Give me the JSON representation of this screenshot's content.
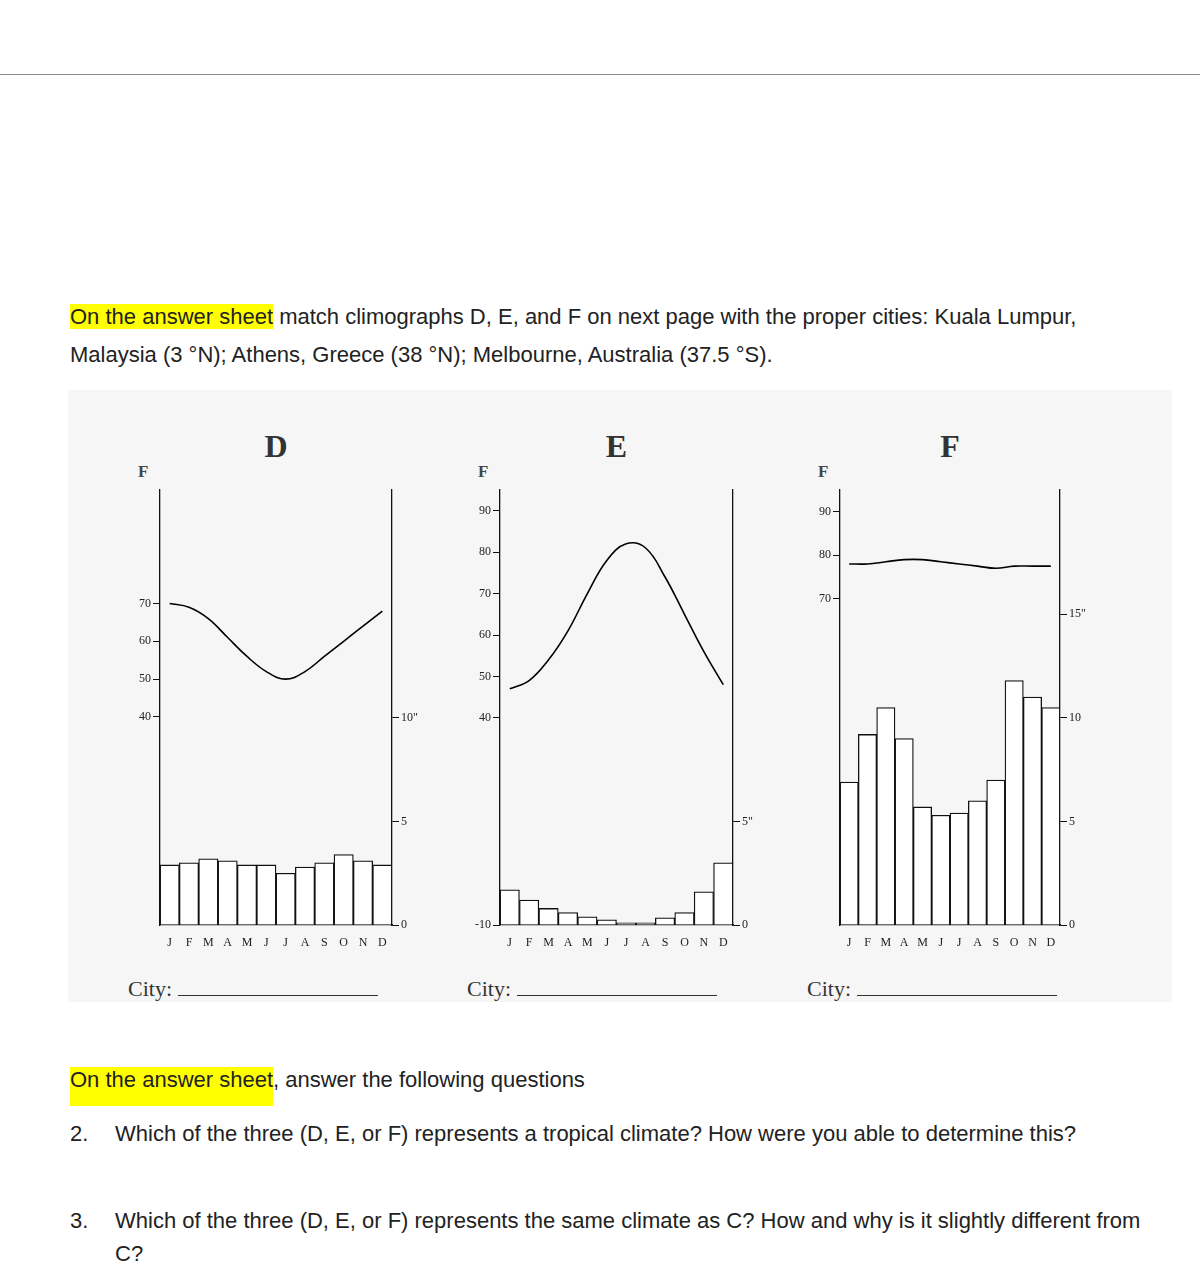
{
  "instruction": {
    "highlight": "On the answer sheet",
    "text": " match climographs D, E, and F on next page with the proper cities: Kuala Lumpur, Malaysia (3 °N); Athens, Greece (38 °N); Melbourne, Australia (37.5 °S)."
  },
  "chart_data": [
    {
      "type": "bar",
      "title": "D",
      "ylabel": "F",
      "city_label": "City:",
      "grid": false,
      "categories": [
        "J",
        "F",
        "M",
        "A",
        "M",
        "J",
        "J",
        "A",
        "S",
        "O",
        "N",
        "D"
      ],
      "series": [
        {
          "type": "line",
          "color": "#000000",
          "axis": "y",
          "values": [
            70,
            69,
            66,
            61,
            56,
            52,
            50,
            52,
            56,
            60,
            64,
            68
          ]
        },
        {
          "type": "bar",
          "color": "#ffffff",
          "axis": "y2",
          "values": [
            2.9,
            3.0,
            3.2,
            3.1,
            2.9,
            2.9,
            2.5,
            2.8,
            3.0,
            3.4,
            3.1,
            2.9
          ]
        }
      ],
      "ylim": [
        -15,
        100
      ],
      "yticks": [
        40,
        50,
        60,
        70
      ],
      "y2lim": [
        0,
        21
      ],
      "y2ticks": [
        0,
        5,
        {
          "value": 10,
          "label": "10\""
        }
      ]
    },
    {
      "type": "bar",
      "title": "E",
      "ylabel": "F",
      "city_label": "City:",
      "grid": false,
      "categories": [
        "J",
        "F",
        "M",
        "A",
        "M",
        "J",
        "J",
        "A",
        "S",
        "O",
        "N",
        "D"
      ],
      "series": [
        {
          "type": "line",
          "color": "#000000",
          "axis": "y",
          "values": [
            47,
            49,
            54,
            61,
            70,
            78,
            82,
            81,
            74,
            65,
            56,
            48
          ]
        },
        {
          "type": "bar",
          "color": "#ffffff",
          "axis": "y2",
          "values": [
            1.7,
            1.2,
            0.8,
            0.6,
            0.4,
            0.25,
            0.1,
            0.1,
            0.35,
            0.6,
            1.6,
            3.0
          ]
        }
      ],
      "ylim": [
        -10,
        95
      ],
      "yticks": [
        -10,
        40,
        50,
        60,
        70,
        80,
        90
      ],
      "y2lim": [
        0,
        21
      ],
      "y2ticks": [
        0,
        {
          "value": 5,
          "label": "5\""
        }
      ]
    },
    {
      "type": "bar",
      "title": "F",
      "ylabel": "F",
      "city_label": "City:",
      "grid": false,
      "categories": [
        "J",
        "F",
        "M",
        "A",
        "M",
        "J",
        "J",
        "A",
        "S",
        "O",
        "N",
        "D"
      ],
      "series": [
        {
          "type": "line",
          "color": "#000000",
          "axis": "y",
          "values": [
            78,
            78,
            78.5,
            79,
            79,
            78.5,
            78,
            77.5,
            77,
            77.5,
            77.5,
            77.5
          ]
        },
        {
          "type": "bar",
          "color": "#ffffff",
          "axis": "y2",
          "values": [
            6.9,
            9.2,
            10.5,
            9.0,
            5.7,
            5.3,
            5.4,
            6.0,
            7.0,
            11.8,
            11.0,
            10.5
          ]
        }
      ],
      "ylim": [
        -5,
        95
      ],
      "yticks": [
        70,
        80,
        90
      ],
      "y2lim": [
        0,
        21
      ],
      "y2ticks": [
        0,
        5,
        10,
        {
          "value": 15,
          "label": "15\""
        }
      ]
    }
  ],
  "questions": {
    "intro": {
      "highlight": "On the answer sheet",
      "text": ", answer the following questions"
    },
    "items": [
      {
        "number": "2.",
        "text": "Which of the three (D, E, or F) represents a tropical climate? How were you able to determine this?"
      },
      {
        "number": "3.",
        "text": "Which of the three (D, E, or F) represents the same climate as C? How and why is it slightly different from C?"
      }
    ]
  }
}
